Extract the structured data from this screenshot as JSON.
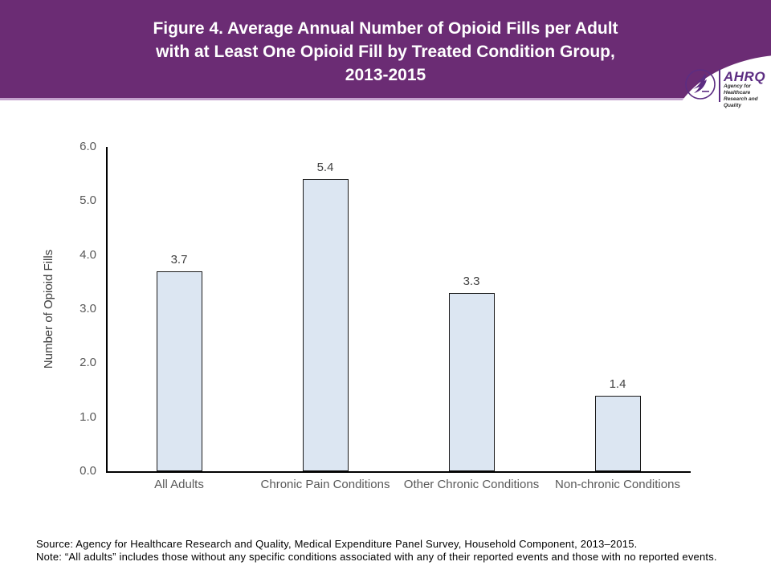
{
  "header": {
    "title_lines": [
      "Figure 4. Average Annual Number of Opioid Fills per Adult",
      "with at Least One Opioid Fill by Treated Condition Group,",
      "2013-2015"
    ],
    "banner_color": "#6B2C74",
    "separator_color": "#C4A2CE",
    "logo": {
      "ahrq_word": "AHRQ",
      "ahrq_sub_line1": "Agency for Healthcare",
      "ahrq_sub_line2": "Research and Quality",
      "logo_color": "#5C2D82"
    }
  },
  "chart_data": {
    "type": "bar",
    "title": "Figure 4. Average Annual Number of Opioid Fills per Adult with at Least One Opioid Fill by Treated Condition Group, 2013-2015",
    "categories": [
      "All Adults",
      "Chronic Pain Conditions",
      "Other Chronic Conditions",
      "Non-chronic Conditions"
    ],
    "values": [
      3.7,
      5.4,
      3.3,
      1.4
    ],
    "value_labels": [
      "3.7",
      "5.4",
      "3.3",
      "1.4"
    ],
    "xlabel": "",
    "ylabel": "Number of Opioid Fills",
    "ylim": [
      0,
      6
    ],
    "ytick_step": 1.0,
    "yticks": [
      "0.0",
      "1.0",
      "2.0",
      "3.0",
      "4.0",
      "5.0",
      "6.0"
    ],
    "grid": "off",
    "legend": "none",
    "bar_fill": "#DCE6F2",
    "bar_border": "#1A1A1A"
  },
  "footer": {
    "source": "Source: Agency for Healthcare Research and Quality, Medical Expenditure Panel Survey, Household Component, 2013–2015.",
    "note": "Note: “All adults” includes those without any specific conditions associated with any of their reported events and those with no reported events."
  }
}
